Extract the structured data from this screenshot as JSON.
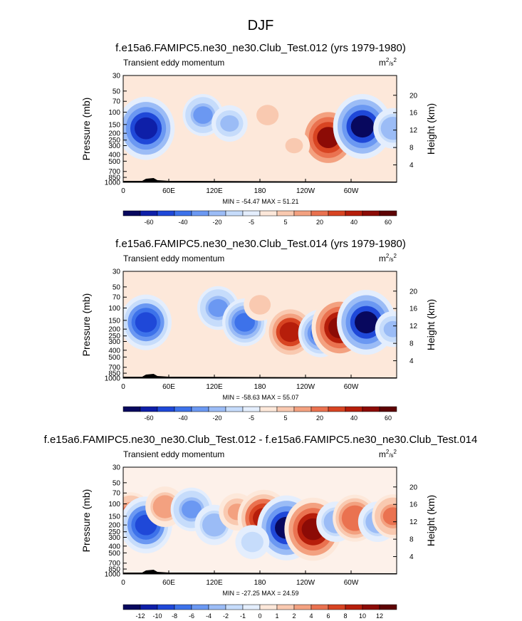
{
  "page": {
    "title": "DJF"
  },
  "units_label_base": "m",
  "units_label_sup1": "2",
  "units_label_mid": "/s",
  "units_label_sup2": "2",
  "colors": {
    "diverging": [
      "#08085e",
      "#0e1fa8",
      "#1f48d8",
      "#3d72ea",
      "#6b98f2",
      "#9bbcf6",
      "#c6dcfb",
      "#e4eefd",
      "#fde8da",
      "#f9c9b0",
      "#f3a180",
      "#ea7250",
      "#d84422",
      "#b61e0b",
      "#8c0b06",
      "#5e0304"
    ]
  },
  "chart_data": [
    {
      "type": "heatmap",
      "title": "f.e15a6.FAMIPC5.ne30_ne30.Club_Test.012 (yrs 1979-1980)",
      "subtitle": "Transient eddy momentum",
      "ylabel": "Pressure (mb)",
      "ylabel_right": "Height (km)",
      "x_ticks": [
        "0",
        "60E",
        "120E",
        "180",
        "120W",
        "60W"
      ],
      "x_tick_values": [
        0,
        60,
        120,
        180,
        240,
        300
      ],
      "xlim": [
        0,
        360
      ],
      "y_ticks": [
        "30",
        "50",
        "70",
        "100",
        "150",
        "200",
        "250",
        "300",
        "400",
        "500",
        "700",
        "850",
        "1000"
      ],
      "y_tick_values": [
        30,
        50,
        70,
        100,
        150,
        200,
        250,
        300,
        400,
        500,
        700,
        850,
        1000
      ],
      "height_ticks": [
        "20",
        "16",
        "12",
        "8",
        "4"
      ],
      "height_tick_values": [
        20,
        16,
        12,
        8,
        4
      ],
      "stats": "MIN = -54.47  MAX =  51.21",
      "levels": [
        "-60",
        "-40",
        "-20",
        "-5",
        "5",
        "20",
        "40",
        "60"
      ],
      "blobs": [
        {
          "lon": 30,
          "p": 170,
          "value": -48
        },
        {
          "lon": 105,
          "p": 110,
          "value": -22
        },
        {
          "lon": 140,
          "p": 145,
          "value": -15
        },
        {
          "lon": 190,
          "p": 110,
          "value": 12
        },
        {
          "lon": 270,
          "p": 230,
          "value": 45
        },
        {
          "lon": 315,
          "p": 160,
          "value": -50
        },
        {
          "lon": 355,
          "p": 170,
          "value": -20
        },
        {
          "lon": 225,
          "p": 300,
          "value": 8
        }
      ]
    },
    {
      "type": "heatmap",
      "title": "f.e15a6.FAMIPC5.ne30_ne30.Club_Test.014 (yrs 1979-1980)",
      "subtitle": "Transient eddy momentum",
      "ylabel": "Pressure (mb)",
      "ylabel_right": "Height (km)",
      "x_ticks": [
        "0",
        "60E",
        "120E",
        "180",
        "120W",
        "60W"
      ],
      "x_tick_values": [
        0,
        60,
        120,
        180,
        240,
        300
      ],
      "xlim": [
        0,
        360
      ],
      "y_ticks": [
        "30",
        "50",
        "70",
        "100",
        "150",
        "200",
        "250",
        "300",
        "400",
        "500",
        "700",
        "850",
        "1000"
      ],
      "y_tick_values": [
        30,
        50,
        70,
        100,
        150,
        200,
        250,
        300,
        400,
        500,
        700,
        850,
        1000
      ],
      "height_ticks": [
        "20",
        "16",
        "12",
        "8",
        "4"
      ],
      "height_tick_values": [
        20,
        16,
        12,
        8,
        4
      ],
      "stats": "MIN = -58.63  MAX =  55.07",
      "levels": [
        "-60",
        "-40",
        "-20",
        "-5",
        "5",
        "20",
        "40",
        "60"
      ],
      "blobs": [
        {
          "lon": 30,
          "p": 160,
          "value": -40
        },
        {
          "lon": 125,
          "p": 100,
          "value": -25
        },
        {
          "lon": 160,
          "p": 160,
          "value": -30
        },
        {
          "lon": 220,
          "p": 220,
          "value": 38
        },
        {
          "lon": 260,
          "p": 230,
          "value": -30
        },
        {
          "lon": 285,
          "p": 190,
          "value": 48
        },
        {
          "lon": 320,
          "p": 160,
          "value": -52
        },
        {
          "lon": 355,
          "p": 200,
          "value": -15
        },
        {
          "lon": 180,
          "p": 90,
          "value": 10
        }
      ]
    },
    {
      "type": "heatmap",
      "title": "f.e15a6.FAMIPC5.ne30_ne30.Club_Test.012 - f.e15a6.FAMIPC5.ne30_ne30.Club_Test.014",
      "subtitle": "Transient eddy momentum",
      "ylabel": "Pressure (mb)",
      "ylabel_right": "Height (km)",
      "x_ticks": [
        "0",
        "60E",
        "120E",
        "180",
        "120W",
        "60W"
      ],
      "x_tick_values": [
        0,
        60,
        120,
        180,
        240,
        300
      ],
      "xlim": [
        0,
        360
      ],
      "y_ticks": [
        "30",
        "50",
        "70",
        "100",
        "150",
        "200",
        "250",
        "300",
        "400",
        "500",
        "700",
        "850",
        "1000"
      ],
      "y_tick_values": [
        30,
        50,
        70,
        100,
        150,
        200,
        250,
        300,
        400,
        500,
        700,
        850,
        1000
      ],
      "height_ticks": [
        "20",
        "16",
        "12",
        "8",
        "4"
      ],
      "height_tick_values": [
        20,
        16,
        12,
        8,
        4
      ],
      "stats": "MIN = -27.25  MAX =  24.59",
      "levels": [
        "-12",
        "-10",
        "-8",
        "-6",
        "-4",
        "-2",
        "-1",
        "0",
        "1",
        "2",
        "4",
        "6",
        "8",
        "10",
        "12"
      ],
      "blobs": [
        {
          "lon": 10,
          "p": 140,
          "value": 12
        },
        {
          "lon": 30,
          "p": 200,
          "value": -20
        },
        {
          "lon": 55,
          "p": 110,
          "value": 10
        },
        {
          "lon": 90,
          "p": 120,
          "value": -12
        },
        {
          "lon": 120,
          "p": 200,
          "value": -10
        },
        {
          "lon": 150,
          "p": 130,
          "value": 8
        },
        {
          "lon": 185,
          "p": 160,
          "value": 20
        },
        {
          "lon": 215,
          "p": 220,
          "value": -25
        },
        {
          "lon": 250,
          "p": 230,
          "value": 24
        },
        {
          "lon": 280,
          "p": 180,
          "value": -10
        },
        {
          "lon": 305,
          "p": 160,
          "value": 14
        },
        {
          "lon": 335,
          "p": 180,
          "value": -10
        },
        {
          "lon": 355,
          "p": 150,
          "value": 12
        },
        {
          "lon": 170,
          "p": 350,
          "value": -6
        }
      ]
    }
  ]
}
